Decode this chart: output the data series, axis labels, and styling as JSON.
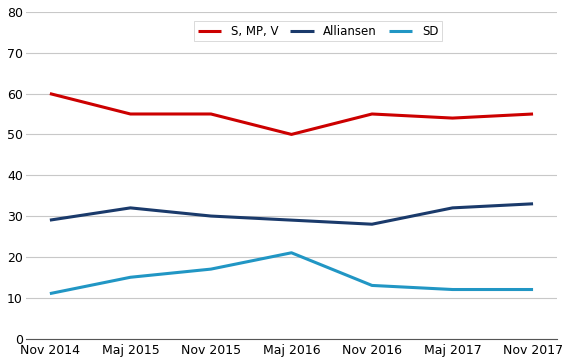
{
  "x_labels": [
    "Nov 2014",
    "Maj 2015",
    "Nov 2015",
    "Maj 2016",
    "Nov 2016",
    "Maj 2017",
    "Nov 2017"
  ],
  "series": {
    "S, MP, V": {
      "values": [
        60,
        55,
        55,
        50,
        55,
        54,
        55
      ],
      "color": "#cc0000",
      "linewidth": 2.2
    },
    "Alliansen": {
      "values": [
        29,
        32,
        30,
        29,
        28,
        32,
        33
      ],
      "color": "#1a3a6b",
      "linewidth": 2.2
    },
    "SD": {
      "values": [
        11,
        15,
        17,
        21,
        13,
        12,
        12
      ],
      "color": "#2196c4",
      "linewidth": 2.2
    }
  },
  "ylim": [
    0,
    80
  ],
  "yticks": [
    0,
    10,
    20,
    30,
    40,
    50,
    60,
    70,
    80
  ],
  "background_color": "#ffffff",
  "grid_color": "#c8c8c8",
  "legend_order": [
    "S, MP, V",
    "Alliansen",
    "SD"
  ]
}
